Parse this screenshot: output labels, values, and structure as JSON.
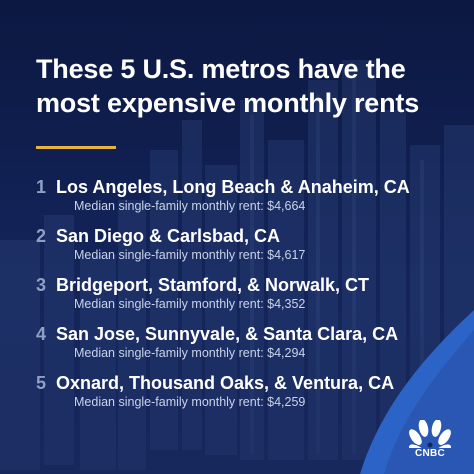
{
  "title": "These 5 U.S. metros have the most expensive monthly rents",
  "accent_color": "#e9b23d",
  "items": [
    {
      "rank": "1",
      "metro": "Los Angeles, Long Beach & Anaheim, CA",
      "rent": "Median single-family monthly rent: $4,664"
    },
    {
      "rank": "2",
      "metro": "San Diego & Carlsbad, CA",
      "rent": "Median single-family monthly rent: $4,617"
    },
    {
      "rank": "3",
      "metro": "Bridgeport, Stamford, & Norwalk, CT",
      "rent": "Median single-family monthly rent: $4,352"
    },
    {
      "rank": "4",
      "metro": "San Jose, Sunnyvale, & Santa Clara, CA",
      "rent": "Median single-family monthly rent: $4,294"
    },
    {
      "rank": "5",
      "metro": "Oxnard, Thousand Oaks, & Ventura, CA",
      "rent": "Median single-family monthly rent: $4,259"
    }
  ],
  "logo": {
    "text": "CNBC",
    "icon": "peacock-icon"
  }
}
